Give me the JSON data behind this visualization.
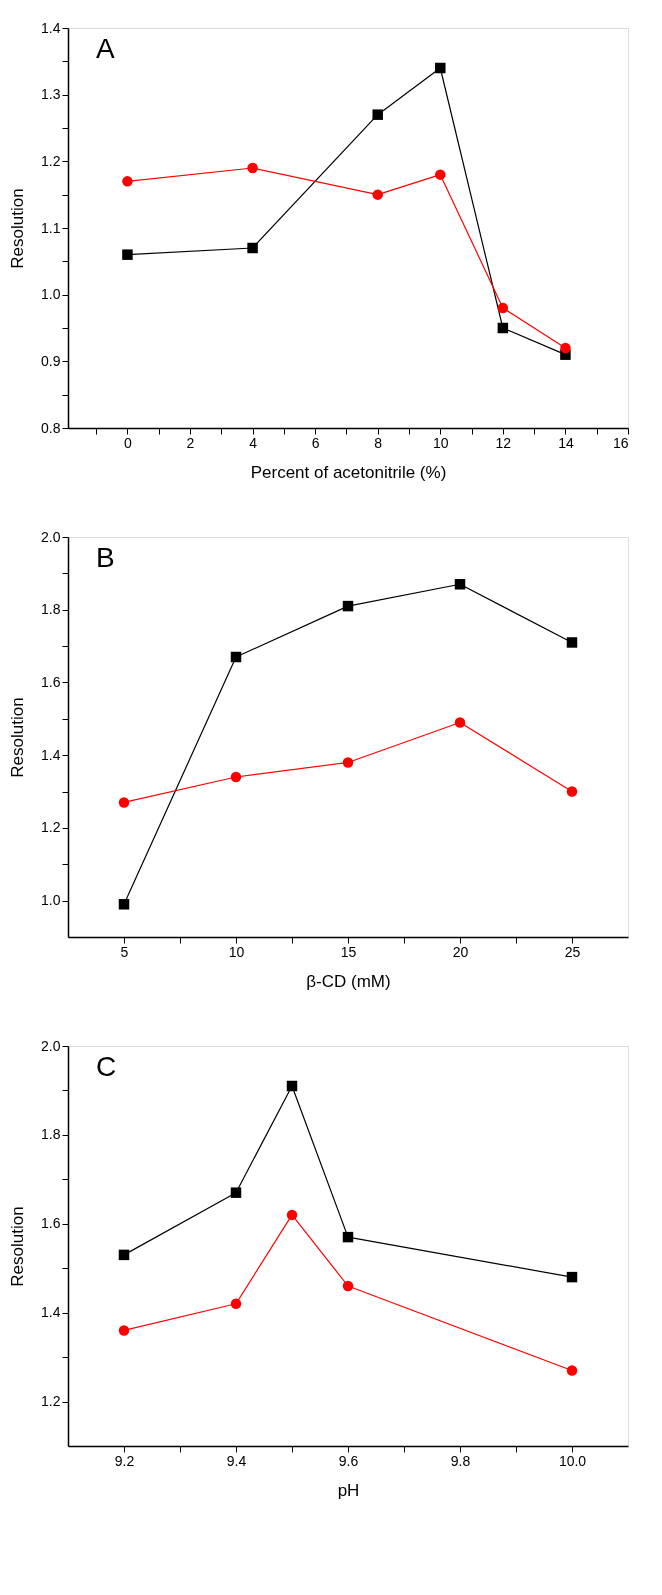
{
  "chart_data": [
    {
      "type": "line",
      "title": "A",
      "xlabel": "Percent of acetonitrile (%)",
      "ylabel": "Resolution",
      "x": [
        0,
        4,
        8,
        10,
        12,
        14
      ],
      "series": [
        {
          "color": "#000000",
          "marker": "square",
          "values": [
            1.06,
            1.07,
            1.27,
            1.34,
            0.95,
            0.91
          ]
        },
        {
          "color": "#ff0000",
          "marker": "circle",
          "values": [
            1.17,
            1.19,
            1.15,
            1.18,
            0.98,
            0.92
          ]
        }
      ],
      "xlim": [
        -1.9,
        16
      ],
      "xticks": [
        {
          "value": -1,
          "label": null
        },
        0,
        {
          "value": 1,
          "label": null
        },
        2,
        {
          "value": 3,
          "label": null
        },
        4,
        {
          "value": 5,
          "label": null
        },
        6,
        {
          "value": 7,
          "label": null
        },
        8,
        {
          "value": 9,
          "label": null
        },
        10,
        {
          "value": 11,
          "label": null
        },
        12,
        {
          "value": 13,
          "label": null
        },
        14,
        {
          "value": 15,
          "label": null
        },
        16
      ],
      "ylim": [
        0.8,
        1.4
      ],
      "yticks": [
        0.8,
        {
          "value": 0.85,
          "label": null
        },
        0.9,
        {
          "value": 0.95,
          "label": null
        },
        {
          "value": 1.0,
          "label": "1.0"
        },
        {
          "value": 1.05,
          "label": null
        },
        1.1,
        {
          "value": 1.15,
          "label": null
        },
        1.2,
        {
          "value": 1.25,
          "label": null
        },
        1.3,
        {
          "value": 1.35,
          "label": null
        },
        1.4
      ]
    },
    {
      "type": "line",
      "title": "B",
      "xlabel": "β-CD (mM)",
      "ylabel": "Resolution",
      "x": [
        5,
        10,
        15,
        20,
        25
      ],
      "series": [
        {
          "color": "#000000",
          "marker": "square",
          "values": [
            0.99,
            1.67,
            1.81,
            1.87,
            1.71
          ]
        },
        {
          "color": "#ff0000",
          "marker": "circle",
          "values": [
            1.27,
            1.34,
            1.38,
            1.49,
            1.3
          ]
        }
      ],
      "xlim": [
        2.5,
        27.5
      ],
      "xticks": [
        5,
        {
          "value": 7.5,
          "label": null
        },
        10,
        {
          "value": 12.5,
          "label": null
        },
        15,
        {
          "value": 17.5,
          "label": null
        },
        20,
        {
          "value": 22.5,
          "label": null
        },
        25
      ],
      "ylim": [
        0.9,
        2.0
      ],
      "yticks": [
        {
          "value": 1.0,
          "label": "1.0"
        },
        {
          "value": 1.1,
          "label": null
        },
        1.2,
        {
          "value": 1.3,
          "label": null
        },
        1.4,
        {
          "value": 1.5,
          "label": null
        },
        1.6,
        {
          "value": 1.7,
          "label": null
        },
        1.8,
        {
          "value": 1.9,
          "label": null
        },
        {
          "value": 2.0,
          "label": "2.0"
        }
      ]
    },
    {
      "type": "line",
      "title": "C",
      "xlabel": "pH",
      "ylabel": "Resolution",
      "x": [
        9.2,
        9.4,
        9.5,
        9.6,
        10.0
      ],
      "series": [
        {
          "color": "#000000",
          "marker": "square",
          "values": [
            1.53,
            1.67,
            1.91,
            1.57,
            1.48
          ]
        },
        {
          "color": "#ff0000",
          "marker": "circle",
          "values": [
            1.36,
            1.42,
            1.62,
            1.46,
            1.27
          ]
        }
      ],
      "xlim": [
        9.1,
        10.1
      ],
      "xticks": [
        9.2,
        {
          "value": 9.3,
          "label": null
        },
        9.4,
        {
          "value": 9.5,
          "label": null
        },
        9.6,
        {
          "value": 9.7,
          "label": null
        },
        9.8,
        {
          "value": 9.9,
          "label": null
        },
        {
          "value": 10.0,
          "label": "10.0"
        }
      ],
      "ylim": [
        1.1,
        2.0
      ],
      "yticks": [
        1.2,
        {
          "value": 1.3,
          "label": null
        },
        1.4,
        {
          "value": 1.5,
          "label": null
        },
        1.6,
        {
          "value": 1.7,
          "label": null
        },
        1.8,
        {
          "value": 1.9,
          "label": null
        },
        {
          "value": 2.0,
          "label": "2.0"
        }
      ]
    }
  ]
}
